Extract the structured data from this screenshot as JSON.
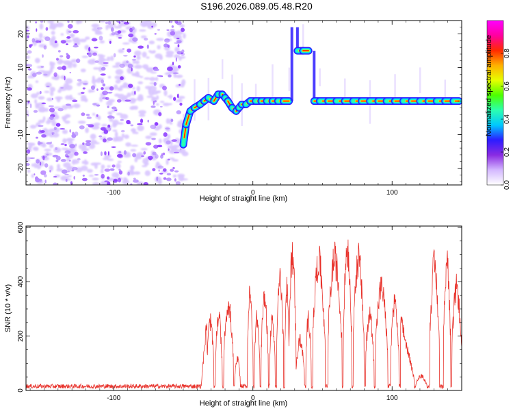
{
  "title": "S196.2026.089.05.48.R20",
  "colors": {
    "noise": "#8c3cff",
    "noise_light": "#d9c6ff",
    "snr_line": "#e8322b",
    "axis": "#000000"
  },
  "chart_data": [
    {
      "type": "heatmap",
      "name": "spectrogram",
      "title": "S196.2026.089.05.48.R20",
      "xlabel": "Height of straight line (km)",
      "ylabel": "Frequency (Hz)",
      "xlim": [
        -163,
        150
      ],
      "ylim": [
        -25,
        24
      ],
      "xticks": [
        -100,
        0,
        100
      ],
      "xtick_labels": [
        "-100",
        "0",
        "100"
      ],
      "yticks": [
        -20,
        -10,
        0,
        10,
        20
      ],
      "ytick_labels": [
        "-20",
        "-10",
        "0",
        "10",
        "20"
      ],
      "noise_region_x": [
        -163,
        -50
      ],
      "ridge_points": [
        {
          "x": -50,
          "y": -13
        },
        {
          "x": -48,
          "y": -7
        },
        {
          "x": -45,
          "y": -3
        },
        {
          "x": -42,
          "y": -2
        },
        {
          "x": -38,
          "y": -1
        },
        {
          "x": -35,
          "y": 0
        },
        {
          "x": -32,
          "y": 1
        },
        {
          "x": -28,
          "y": 0
        },
        {
          "x": -25,
          "y": 2
        },
        {
          "x": -22,
          "y": 2
        },
        {
          "x": -20,
          "y": 1
        },
        {
          "x": -18,
          "y": 0
        },
        {
          "x": -15,
          "y": -2
        },
        {
          "x": -12,
          "y": -3
        },
        {
          "x": -10,
          "y": -2
        },
        {
          "x": -8,
          "y": -1
        },
        {
          "x": -5,
          "y": -1
        },
        {
          "x": -2,
          "y": 0
        },
        {
          "x": 2,
          "y": 0
        },
        {
          "x": 6,
          "y": 0
        },
        {
          "x": 10,
          "y": 0
        },
        {
          "x": 14,
          "y": 0
        },
        {
          "x": 18,
          "y": 0
        },
        {
          "x": 22,
          "y": 0
        },
        {
          "x": 26,
          "y": 0
        },
        {
          "x": 28,
          "y": 22
        },
        {
          "x": 32,
          "y": 15
        },
        {
          "x": 36,
          "y": 15
        },
        {
          "x": 40,
          "y": 15
        },
        {
          "x": 44,
          "y": 0
        },
        {
          "x": 48,
          "y": 0
        },
        {
          "x": 54,
          "y": 0
        },
        {
          "x": 60,
          "y": 0
        },
        {
          "x": 66,
          "y": 0
        },
        {
          "x": 72,
          "y": 0
        },
        {
          "x": 78,
          "y": 0
        },
        {
          "x": 84,
          "y": 0
        },
        {
          "x": 90,
          "y": 0
        },
        {
          "x": 96,
          "y": 0
        },
        {
          "x": 102,
          "y": 0
        },
        {
          "x": 108,
          "y": 0
        },
        {
          "x": 114,
          "y": 0
        },
        {
          "x": 120,
          "y": 0
        },
        {
          "x": 126,
          "y": 0
        },
        {
          "x": 132,
          "y": 0
        },
        {
          "x": 138,
          "y": 0
        },
        {
          "x": 144,
          "y": 0
        },
        {
          "x": 148,
          "y": 0
        }
      ],
      "colorbar": {
        "label": "Normalized spectral amplitude",
        "range": [
          0,
          1
        ],
        "ticks": [
          0.0,
          0.2,
          0.4,
          0.6,
          0.8
        ],
        "tick_labels": [
          "0.0",
          "0.2",
          "0.4",
          "0.6",
          "0.8"
        ],
        "colors": [
          "#ffffff",
          "#d4b8ff",
          "#8a2be2",
          "#2d1cff",
          "#00c8ff",
          "#2bffb0",
          "#4cff00",
          "#e6ff00",
          "#ffb000",
          "#ff2a00",
          "#ff00a0",
          "#ff00ff"
        ]
      }
    },
    {
      "type": "line",
      "name": "snr",
      "xlabel": "Height of straight line (km)",
      "ylabel": "SNR (10 * v/v)",
      "xlim": [
        -163,
        150
      ],
      "ylim": [
        0,
        605
      ],
      "xticks": [
        -100,
        0,
        100
      ],
      "xtick_labels": [
        "-100",
        "0",
        "100"
      ],
      "yticks": [
        0,
        200,
        400,
        600
      ],
      "ytick_labels": [
        "0",
        "200",
        "400",
        "600"
      ],
      "noise_level": 18,
      "segments": [
        {
          "start": -37,
          "end": -33,
          "peak": 300,
          "shape": "rise"
        },
        {
          "start": -33,
          "end": -28,
          "peak": 290,
          "shape": "hump"
        },
        {
          "start": -27,
          "end": -22,
          "peak": 310,
          "shape": "hump"
        },
        {
          "start": -21,
          "end": -14,
          "peak": 360,
          "shape": "hump"
        },
        {
          "start": -13,
          "end": -9,
          "peak": 130,
          "shape": "hump"
        },
        {
          "start": -4,
          "end": 0,
          "peak": 400,
          "shape": "hump"
        },
        {
          "start": 1,
          "end": 5,
          "peak": 300,
          "shape": "hump"
        },
        {
          "start": 6,
          "end": 11,
          "peak": 390,
          "shape": "hump"
        },
        {
          "start": 12,
          "end": 16,
          "peak": 300,
          "shape": "hump"
        },
        {
          "start": 17,
          "end": 22,
          "peak": 470,
          "shape": "hump"
        },
        {
          "start": 23,
          "end": 26,
          "peak": 420,
          "shape": "hump"
        },
        {
          "start": 26,
          "end": 31,
          "peak": 570,
          "shape": "hump"
        },
        {
          "start": 31,
          "end": 37,
          "peak": 210,
          "shape": "hump"
        },
        {
          "start": 38,
          "end": 42,
          "peak": 300,
          "shape": "hump"
        },
        {
          "start": 43,
          "end": 52,
          "peak": 540,
          "shape": "hump"
        },
        {
          "start": 54,
          "end": 64,
          "peak": 550,
          "shape": "hump"
        },
        {
          "start": 65,
          "end": 71,
          "peak": 600,
          "shape": "hump"
        },
        {
          "start": 72,
          "end": 80,
          "peak": 550,
          "shape": "hump"
        },
        {
          "start": 81,
          "end": 87,
          "peak": 320,
          "shape": "hump"
        },
        {
          "start": 88,
          "end": 97,
          "peak": 430,
          "shape": "hump"
        },
        {
          "start": 99,
          "end": 105,
          "peak": 370,
          "shape": "hump"
        },
        {
          "start": 106,
          "end": 116,
          "peak": 300,
          "shape": "decay"
        },
        {
          "start": 117,
          "end": 125,
          "peak": 60,
          "shape": "hump"
        },
        {
          "start": 127,
          "end": 134,
          "peak": 520,
          "shape": "hump"
        },
        {
          "start": 137,
          "end": 142,
          "peak": 540,
          "shape": "hump"
        },
        {
          "start": 143,
          "end": 150,
          "peak": 430,
          "shape": "hump"
        }
      ]
    }
  ]
}
